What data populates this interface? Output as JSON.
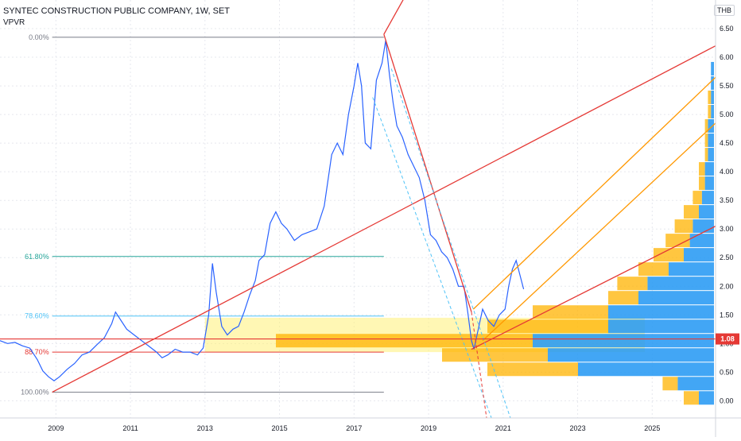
{
  "header": {
    "title": "SYNTEC CONSTRUCTION PUBLIC COMPANY, 1W, SET",
    "indicator": "VPVR",
    "currency": "THB"
  },
  "chart_data": {
    "type": "line",
    "title": "SYNTEC CONSTRUCTION PUBLIC COMPANY, 1W, SET",
    "xlabel": "",
    "ylabel": "",
    "ylim": [
      -0.3,
      7.0
    ],
    "xlim": [
      2007.5,
      2026.7
    ],
    "y_ticks": [
      "0.00",
      "0.50",
      "1.00",
      "1.50",
      "2.00",
      "2.50",
      "3.00",
      "3.50",
      "4.00",
      "4.50",
      "5.00",
      "5.50",
      "6.00",
      "6.50"
    ],
    "x_ticks": [
      "2009",
      "2011",
      "2013",
      "2015",
      "2017",
      "2019",
      "2021",
      "2023",
      "2025"
    ],
    "last_price": "1.08",
    "grid": true,
    "colors": {
      "price": "#2962ff",
      "trend": "#e53935",
      "fork": "#ff9800",
      "zone": "#fff176",
      "fib_618": "#26a69a",
      "fib_786": "#4fc3f7",
      "fib_other": "#787b86",
      "vp_up": "#2196f3",
      "vp_down": "#ffb300"
    },
    "series": [
      {
        "x": [
          2007.5,
          2007.7,
          2007.9,
          2008.1,
          2008.3,
          2008.5,
          2008.65,
          2008.8,
          2008.95,
          2009.1,
          2009.3,
          2009.5,
          2009.7,
          2009.9,
          2010.1,
          2010.3,
          2010.5,
          2010.6,
          2010.75,
          2010.9,
          2011.1,
          2011.3,
          2011.5,
          2011.7,
          2011.85,
          2012.0,
          2012.2,
          2012.4,
          2012.6,
          2012.8,
          2012.95,
          2013.1,
          2013.2,
          2013.3,
          2013.45,
          2013.6,
          2013.75,
          2013.9,
          2014.05,
          2014.2,
          2014.35,
          2014.45,
          2014.6,
          2014.75,
          2014.9,
          2015.05,
          2015.2,
          2015.4,
          2015.6,
          2015.8,
          2016.0,
          2016.2,
          2016.4,
          2016.55,
          2016.7,
          2016.85,
          2017.0,
          2017.1,
          2017.2,
          2017.3,
          2017.45,
          2017.6,
          2017.75,
          2017.85,
          2017.95,
          2018.05,
          2018.15,
          2018.3,
          2018.45,
          2018.6,
          2018.75,
          2018.9,
          2019.05,
          2019.2,
          2019.35,
          2019.5,
          2019.65,
          2019.8,
          2019.95,
          2020.05,
          2020.15,
          2020.22,
          2020.3,
          2020.45,
          2020.6,
          2020.75,
          2020.9,
          2021.05,
          2021.15,
          2021.25,
          2021.35,
          2021.45,
          2021.55
        ],
        "y": [
          1.05,
          1.0,
          1.02,
          0.96,
          0.92,
          0.72,
          0.52,
          0.42,
          0.35,
          0.42,
          0.55,
          0.65,
          0.8,
          0.85,
          0.98,
          1.1,
          1.35,
          1.55,
          1.4,
          1.25,
          1.15,
          1.05,
          0.95,
          0.85,
          0.75,
          0.8,
          0.9,
          0.85,
          0.85,
          0.8,
          0.92,
          1.5,
          2.4,
          1.9,
          1.3,
          1.15,
          1.25,
          1.3,
          1.55,
          1.85,
          2.1,
          2.45,
          2.55,
          3.1,
          3.3,
          3.1,
          3.0,
          2.8,
          2.9,
          2.95,
          3.0,
          3.4,
          4.3,
          4.5,
          4.3,
          5.0,
          5.5,
          5.9,
          5.5,
          4.5,
          4.4,
          5.6,
          5.9,
          6.3,
          5.7,
          5.2,
          4.8,
          4.6,
          4.3,
          4.1,
          3.9,
          3.5,
          2.9,
          2.8,
          2.6,
          2.5,
          2.3,
          2.0,
          2.0,
          1.55,
          1.05,
          0.9,
          1.15,
          1.6,
          1.4,
          1.3,
          1.5,
          1.6,
          2.0,
          2.3,
          2.45,
          2.2,
          1.95
        ]
      }
    ],
    "fib_levels": [
      {
        "label": "0.00%",
        "y": 6.35,
        "color": "#787b86"
      },
      {
        "label": "61.80%",
        "y": 2.52,
        "color": "#26a69a"
      },
      {
        "label": "78.60%",
        "y": 1.48,
        "color": "#4fc3f7"
      },
      {
        "label": "88.70%",
        "y": 0.85,
        "color": "#e53935"
      },
      {
        "label": "100.00%",
        "y": 0.15,
        "color": "#787b86"
      }
    ],
    "fib_x_start": 2008.9,
    "fib_x_end": 2017.8,
    "zone": {
      "x": [
        2013.0,
        2024.8
      ],
      "y": [
        0.85,
        1.45
      ]
    },
    "trend_lines": [
      {
        "x": [
          2008.9,
          2026.7
        ],
        "y": [
          0.15,
          6.2
        ],
        "color": "#e53935"
      },
      {
        "x": [
          2017.8,
          2020.15
        ],
        "y": [
          6.4,
          1.55
        ],
        "color": "#e53935"
      },
      {
        "x": [
          2017.8,
          2020.2
        ],
        "y": [
          6.4,
          9.2
        ],
        "color": "#e53935"
      },
      {
        "x": [
          2020.15,
          2026.7
        ],
        "y": [
          0.9,
          3.05
        ],
        "color": "#e53935"
      },
      {
        "x": [
          2020.2,
          2026.7
        ],
        "y": [
          1.6,
          5.65
        ],
        "color": "#ff9800"
      },
      {
        "x": [
          2020.45,
          2026.7
        ],
        "y": [
          1.05,
          4.85
        ],
        "color": "#ff9800"
      }
    ],
    "dashed_lines": [
      {
        "x": [
          2017.5,
          2020.8
        ],
        "y": [
          5.3,
          -0.5
        ],
        "color": "#4fc3f7"
      },
      {
        "x": [
          2018.0,
          2021.3
        ],
        "y": [
          5.8,
          -0.5
        ],
        "color": "#4fc3f7"
      },
      {
        "x": [
          2020.15,
          2020.6
        ],
        "y": [
          1.55,
          -0.5
        ],
        "color": "#e53935"
      }
    ],
    "volume_profile": [
      {
        "price": 0.05,
        "up": 0.05,
        "down": 0.05
      },
      {
        "price": 0.3,
        "up": 0.12,
        "down": 0.05
      },
      {
        "price": 0.55,
        "up": 0.45,
        "down": 0.3
      },
      {
        "price": 0.8,
        "up": 0.55,
        "down": 0.35
      },
      {
        "price": 1.05,
        "up": 0.6,
        "down": 0.85
      },
      {
        "price": 1.3,
        "up": 0.35,
        "down": 0.4
      },
      {
        "price": 1.55,
        "up": 0.35,
        "down": 0.25
      },
      {
        "price": 1.8,
        "up": 0.25,
        "down": 0.1
      },
      {
        "price": 2.05,
        "up": 0.22,
        "down": 0.1
      },
      {
        "price": 2.3,
        "up": 0.15,
        "down": 0.1
      },
      {
        "price": 2.55,
        "up": 0.1,
        "down": 0.1
      },
      {
        "price": 2.8,
        "up": 0.08,
        "down": 0.08
      },
      {
        "price": 3.05,
        "up": 0.07,
        "down": 0.06
      },
      {
        "price": 3.3,
        "up": 0.05,
        "down": 0.05
      },
      {
        "price": 3.55,
        "up": 0.04,
        "down": 0.03
      },
      {
        "price": 3.8,
        "up": 0.03,
        "down": 0.02
      },
      {
        "price": 4.05,
        "up": 0.03,
        "down": 0.02
      },
      {
        "price": 4.3,
        "up": 0.02,
        "down": 0.01
      },
      {
        "price": 4.55,
        "up": 0.02,
        "down": 0.01
      },
      {
        "price": 4.8,
        "up": 0.02,
        "down": 0.01
      },
      {
        "price": 5.05,
        "up": 0.01,
        "down": 0.01
      },
      {
        "price": 5.3,
        "up": 0.01,
        "down": 0.01
      },
      {
        "price": 5.55,
        "up": 0.01,
        "down": 0.0
      },
      {
        "price": 5.8,
        "up": 0.01,
        "down": 0.0
      }
    ]
  }
}
